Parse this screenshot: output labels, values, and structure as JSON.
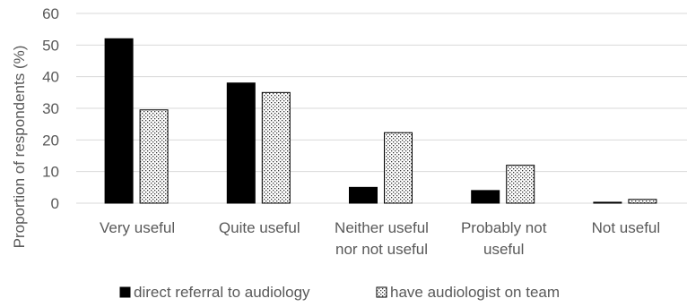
{
  "chart_data": {
    "type": "bar",
    "ylabel": "Proportion of respondents (%)",
    "xlabel": "",
    "title": "",
    "ylim": [
      0,
      60
    ],
    "yticks": [
      0,
      10,
      20,
      30,
      40,
      50,
      60
    ],
    "grid": true,
    "legend_position": "bottom",
    "categories": [
      [
        "Very useful"
      ],
      [
        "Quite useful"
      ],
      [
        "Neither useful",
        "nor not useful"
      ],
      [
        "Probably not",
        "useful"
      ],
      [
        "Not useful"
      ]
    ],
    "series": [
      {
        "name": "direct referral to audiology",
        "fill": "solid",
        "color": "#000000",
        "values": [
          52,
          38,
          5,
          4,
          0.3
        ]
      },
      {
        "name": "have audiologist on team",
        "fill": "dotted",
        "color": "#000000",
        "values": [
          29.5,
          35,
          22.3,
          12,
          1.2
        ]
      }
    ]
  }
}
